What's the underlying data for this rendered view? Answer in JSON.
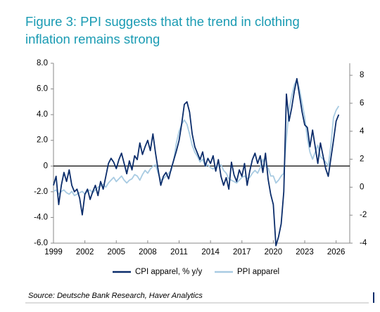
{
  "chart_data": {
    "type": "line",
    "title": "Figure 3: PPI suggests that the trend in clothing inflation remains strong",
    "source": "Source: Deutsche Bank Research, Haver Analytics",
    "x": [
      1999,
      1999.25,
      1999.5,
      1999.75,
      2000,
      2000.25,
      2000.5,
      2000.75,
      2001,
      2001.25,
      2001.5,
      2001.75,
      2002,
      2002.25,
      2002.5,
      2002.75,
      2003,
      2003.25,
      2003.5,
      2003.75,
      2004,
      2004.25,
      2004.5,
      2004.75,
      2005,
      2005.25,
      2005.5,
      2005.75,
      2006,
      2006.25,
      2006.5,
      2006.75,
      2007,
      2007.25,
      2007.5,
      2007.75,
      2008,
      2008.25,
      2008.5,
      2008.75,
      2009,
      2009.25,
      2009.5,
      2009.75,
      2010,
      2010.25,
      2010.5,
      2010.75,
      2011,
      2011.25,
      2011.5,
      2011.75,
      2012,
      2012.25,
      2012.5,
      2012.75,
      2013,
      2013.25,
      2013.5,
      2013.75,
      2014,
      2014.25,
      2014.5,
      2014.75,
      2015,
      2015.25,
      2015.5,
      2015.75,
      2016,
      2016.25,
      2016.5,
      2016.75,
      2017,
      2017.25,
      2017.5,
      2017.75,
      2018,
      2018.25,
      2018.5,
      2018.75,
      2019,
      2019.25,
      2019.5,
      2019.75,
      2020,
      2020.25,
      2020.5,
      2020.75,
      2021,
      2021.25,
      2021.5,
      2021.75,
      2022,
      2022.25,
      2022.5,
      2022.75,
      2023,
      2023.25,
      2023.5,
      2023.75,
      2024,
      2024.25,
      2024.5,
      2024.75,
      2025,
      2025.25,
      2025.5,
      2025.75,
      2026,
      2026.25
    ],
    "xlim": [
      1999,
      2027.3
    ],
    "xticks": [
      1999,
      2002,
      2005,
      2008,
      2011,
      2014,
      2017,
      2020,
      2023,
      2026
    ],
    "ylim": [
      -6,
      8
    ],
    "yticks": [
      {
        "value": -6,
        "label": "-6.0"
      },
      {
        "value": -4,
        "label": "-4.0"
      },
      {
        "value": -2,
        "label": "-2.0"
      },
      0,
      {
        "value": 2,
        "label": "2.0"
      },
      {
        "value": 4,
        "label": "4.0"
      },
      {
        "value": 6,
        "label": "6.0"
      },
      {
        "value": 8,
        "label": "8.0"
      }
    ],
    "y2lim": [
      -4,
      8.86
    ],
    "y2ticks": [
      -4,
      -2,
      0,
      2,
      4,
      6,
      8
    ],
    "zero_line": true,
    "series": [
      {
        "name": "CPI apparel, % y/y",
        "color": "#0b2d6b",
        "values": [
          -1.5,
          -0.8,
          -3.0,
          -1.5,
          -0.5,
          -1.2,
          -0.3,
          -1.5,
          -2.0,
          -1.8,
          -2.5,
          -3.8,
          -2.2,
          -1.8,
          -2.6,
          -2.0,
          -1.5,
          -2.3,
          -1.2,
          -1.8,
          -0.8,
          0.2,
          0.6,
          0.3,
          -0.2,
          0.5,
          1.0,
          0.2,
          -0.6,
          0.4,
          -0.3,
          0.8,
          0.5,
          1.8,
          0.9,
          1.5,
          2.0,
          1.2,
          2.5,
          1.0,
          -0.3,
          -1.5,
          -0.8,
          -0.5,
          -1.0,
          -0.2,
          0.5,
          1.2,
          2.0,
          3.3,
          4.8,
          5.0,
          4.2,
          2.5,
          1.5,
          1.0,
          0.5,
          1.1,
          0.0,
          0.6,
          0.2,
          0.8,
          -0.4,
          0.5,
          -0.8,
          -1.5,
          -0.9,
          -1.8,
          0.3,
          -0.7,
          -1.2,
          -0.3,
          -0.8,
          0.2,
          -1.5,
          -0.4,
          0.5,
          1.0,
          0.2,
          0.8,
          -0.5,
          1.0,
          -1.0,
          -2.2,
          -3.0,
          -6.2,
          -5.5,
          -4.5,
          -2.0,
          5.6,
          3.5,
          4.5,
          5.8,
          6.8,
          5.5,
          4.2,
          3.2,
          3.0,
          1.5,
          2.8,
          1.5,
          0.2,
          1.8,
          0.8,
          -0.2,
          -0.8,
          0.6,
          2.0,
          3.5,
          4.0
        ]
      },
      {
        "name": "PPI apparel",
        "color": "#a8cbe2",
        "axis": "y2",
        "values": [
          -0.3,
          -0.2,
          -0.5,
          -0.3,
          -0.2,
          -0.4,
          -0.5,
          -0.3,
          -0.6,
          -0.5,
          -0.4,
          -0.3,
          -0.5,
          -0.3,
          -0.2,
          -0.4,
          -0.2,
          0.0,
          0.1,
          0.2,
          0.0,
          0.3,
          0.5,
          0.7,
          0.4,
          0.6,
          0.8,
          0.5,
          0.3,
          0.5,
          0.6,
          0.9,
          0.8,
          0.5,
          0.9,
          1.2,
          1.0,
          1.3,
          1.5,
          1.6,
          1.0,
          0.5,
          0.6,
          0.8,
          1.0,
          1.2,
          2.0,
          3.2,
          4.0,
          4.5,
          4.8,
          4.5,
          3.8,
          3.0,
          2.5,
          2.2,
          1.8,
          2.0,
          1.5,
          1.6,
          1.4,
          1.3,
          1.5,
          1.5,
          1.6,
          1.2,
          1.0,
          0.6,
          0.5,
          0.4,
          0.3,
          0.5,
          0.7,
          0.8,
          0.6,
          0.7,
          1.0,
          1.2,
          1.0,
          1.4,
          2.0,
          1.5,
          1.4,
          0.8,
          0.8,
          0.3,
          0.5,
          0.8,
          1.0,
          3.5,
          5.5,
          6.5,
          7.3,
          7.7,
          7.0,
          6.0,
          5.0,
          3.5,
          2.5,
          2.0,
          2.5,
          3.0,
          2.2,
          2.0,
          1.8,
          1.5,
          3.0,
          5.0,
          5.5,
          5.8
        ]
      }
    ]
  }
}
